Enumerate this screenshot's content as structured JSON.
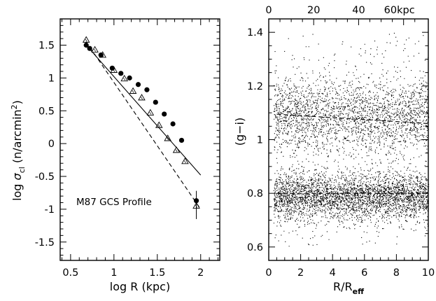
{
  "chart_data": [
    {
      "type": "scatter",
      "title": "M87 GCS Profile",
      "xlabel": "log R (kpc)",
      "ylabel": "log σ_cl (n/arcmin²)",
      "xlim": [
        0.38,
        2.22
      ],
      "ylim": [
        -1.78,
        1.9
      ],
      "x_ticks": [
        "0.5",
        "1",
        "1.5",
        "2"
      ],
      "y_ticks": [
        "-1.5",
        "-1",
        "-0.5",
        "0",
        "0.5",
        "1",
        "1.5"
      ],
      "series": [
        {
          "marker": "filled-circle",
          "x": [
            0.68,
            0.72,
            0.85,
            0.98,
            1.08,
            1.18,
            1.28,
            1.38,
            1.48,
            1.58,
            1.68,
            1.78,
            1.95
          ],
          "y": [
            1.5,
            1.45,
            1.35,
            1.15,
            1.07,
            1.0,
            0.9,
            0.82,
            0.63,
            0.45,
            0.3,
            0.05,
            -0.87
          ]
        },
        {
          "marker": "open-triangle",
          "x": [
            0.68,
            0.78,
            0.87,
            1.0,
            1.12,
            1.22,
            1.32,
            1.42,
            1.52,
            1.62,
            1.72,
            1.82,
            1.95
          ],
          "y": [
            1.58,
            1.43,
            1.35,
            1.12,
            0.99,
            0.8,
            0.7,
            0.47,
            0.28,
            0.08,
            -0.1,
            -0.27,
            -0.95
          ]
        }
      ],
      "fit_lines": [
        {
          "style": "solid",
          "x": [
            0.68,
            2.0
          ],
          "y": [
            1.5,
            -0.48
          ]
        },
        {
          "style": "dashed",
          "x": [
            0.68,
            2.0
          ],
          "y": [
            1.55,
            -1.0
          ]
        }
      ]
    },
    {
      "type": "scatter",
      "xlabel": "R/R",
      "xlabel_sub": "eff",
      "ylabel": "(g−i)",
      "xlim": [
        0,
        10
      ],
      "ylim": [
        0.55,
        1.45
      ],
      "x_ticks": [
        "0",
        "2",
        "4",
        "6",
        "8",
        "10"
      ],
      "y_ticks": [
        "0.6",
        "0.8",
        "1",
        "1.2",
        "1.4"
      ],
      "top_axis_ticks": [
        "0",
        "20",
        "40",
        "60kpc"
      ],
      "top_axis_values": [
        0,
        20,
        40,
        60
      ],
      "top_axis_kpc_per_reff": 7.1,
      "point_count": 6000,
      "populations": [
        {
          "name": "blue",
          "fraction": 0.55,
          "color_mean": 0.79,
          "color_sd": 0.045
        },
        {
          "name": "red",
          "fraction": 0.45,
          "color_mean": 1.09,
          "color_sd": 0.07
        }
      ],
      "fit_lines": [
        {
          "style": "dashed",
          "x": [
            0.5,
            10
          ],
          "y": [
            0.8,
            0.8
          ]
        },
        {
          "style": "dashed",
          "x": [
            0.5,
            10
          ],
          "y": [
            1.095,
            1.06
          ]
        }
      ]
    }
  ]
}
